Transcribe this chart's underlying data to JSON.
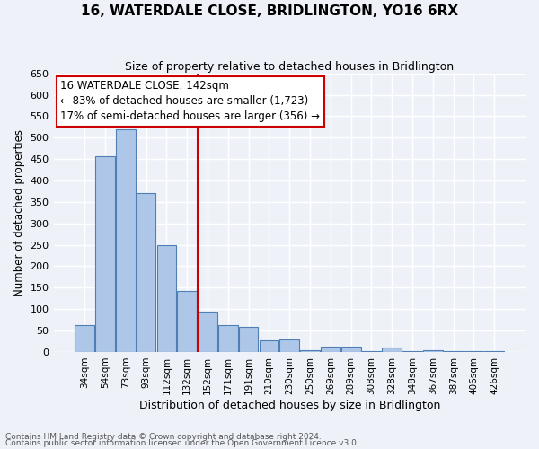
{
  "title": "16, WATERDALE CLOSE, BRIDLINGTON, YO16 6RX",
  "subtitle": "Size of property relative to detached houses in Bridlington",
  "xlabel": "Distribution of detached houses by size in Bridlington",
  "ylabel": "Number of detached properties",
  "footnote1": "Contains HM Land Registry data © Crown copyright and database right 2024.",
  "footnote2": "Contains public sector information licensed under the Open Government Licence v3.0.",
  "bin_labels": [
    "34sqm",
    "54sqm",
    "73sqm",
    "93sqm",
    "112sqm",
    "132sqm",
    "152sqm",
    "171sqm",
    "191sqm",
    "210sqm",
    "230sqm",
    "250sqm",
    "269sqm",
    "289sqm",
    "308sqm",
    "328sqm",
    "348sqm",
    "367sqm",
    "387sqm",
    "406sqm",
    "426sqm"
  ],
  "bar_values": [
    62,
    457,
    520,
    371,
    250,
    143,
    95,
    62,
    58,
    27,
    29,
    5,
    13,
    13,
    3,
    10,
    3,
    5,
    3,
    3,
    2
  ],
  "bar_color": "#aec6e8",
  "bar_edge_color": "#4f7fb5",
  "bg_color": "#eef2f8",
  "plot_bg_color": "#eef2f8",
  "grid_color": "#ffffff",
  "vline_color": "#cc0000",
  "ylim": [
    0,
    650
  ],
  "yticks": [
    0,
    50,
    100,
    150,
    200,
    250,
    300,
    350,
    400,
    450,
    500,
    550,
    600,
    650
  ],
  "annotation_title": "16 WATERDALE CLOSE: 142sqm",
  "annotation_line1": "← 83% of detached houses are smaller (1,723)",
  "annotation_line2": "17% of semi-detached houses are larger (356) →",
  "annotation_box_color": "#ffffff",
  "annotation_box_edge_color": "#cc0000",
  "title_fontsize": 11,
  "subtitle_fontsize": 9,
  "ylabel_fontsize": 8.5,
  "xlabel_fontsize": 9,
  "tick_fontsize": 8,
  "xtick_fontsize": 7.5,
  "annot_fontsize": 8.5,
  "footnote_fontsize": 6.5
}
